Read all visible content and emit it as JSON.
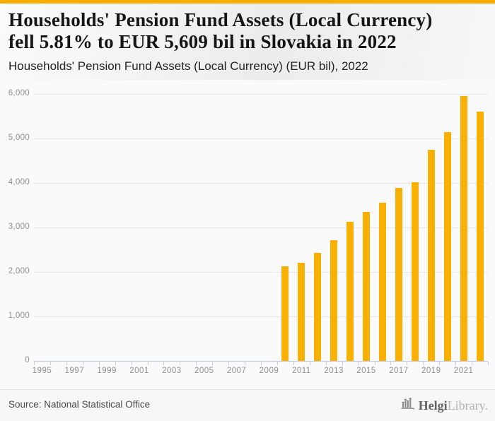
{
  "page": {
    "accent_color": "#F6AC00",
    "panel_background": "#fafafa"
  },
  "header": {
    "title_line1": "Households' Pension Fund Assets (Local Currency)",
    "title_line2": "fell 5.81% to EUR 5,609 bil in Slovakia in 2022",
    "subtitle": "Households' Pension Fund Assets (Local Currency) (EUR bil), 2022"
  },
  "chart_data": {
    "type": "bar",
    "title": "Households' Pension Fund Assets (Local Currency) (EUR bil), 2022",
    "xlabel": "",
    "ylabel": "",
    "ylim": [
      0,
      6000
    ],
    "grid": true,
    "legend": "none",
    "bar_color": "#F9B005",
    "grid_color": "#e7e7e7",
    "axis_color": "#c4cce0",
    "x_axis_years": {
      "start": 1995,
      "end": 2022
    },
    "x_tick_labels": [
      "1995",
      "1997",
      "1999",
      "2001",
      "2003",
      "2005",
      "2007",
      "2009",
      "2011",
      "2013",
      "2015",
      "2017",
      "2019",
      "2021"
    ],
    "y_tick_labels": [
      "0",
      "1,000",
      "2,000",
      "3,000",
      "4,000",
      "5,000",
      "6,000"
    ],
    "categories": [
      "2010",
      "2011",
      "2012",
      "2013",
      "2014",
      "2015",
      "2016",
      "2017",
      "2018",
      "2019",
      "2020",
      "2021",
      "2022"
    ],
    "values": [
      2120,
      2200,
      2430,
      2720,
      3130,
      3350,
      3560,
      3890,
      4010,
      4750,
      5140,
      5955,
      5609
    ]
  },
  "footer": {
    "source": "Source: National Statistical Office",
    "logo_primary": "Helgi",
    "logo_secondary": "Library."
  }
}
